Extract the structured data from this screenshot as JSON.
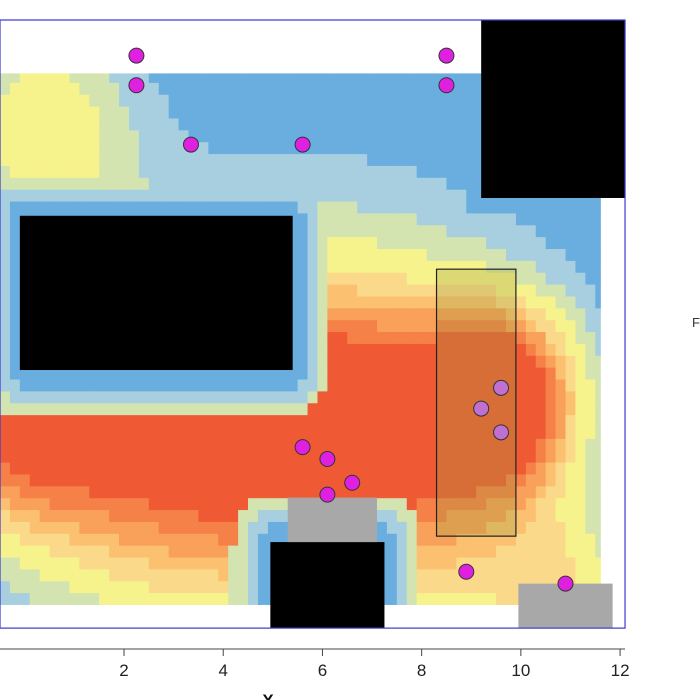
{
  "chart_data": {
    "type": "heatmap",
    "title": "",
    "xlabel": "X",
    "ylabel": "",
    "side_text": "F",
    "xlim": [
      -0.5,
      12.2
    ],
    "ylim": [
      0,
      10.4
    ],
    "x_ticks": [
      2,
      4,
      6,
      8,
      10,
      12
    ],
    "x_tick_labels": [
      "2",
      "4",
      "6",
      "8",
      "10",
      "12"
    ],
    "colors": {
      "frame": "#3a3ad0",
      "obstacle": "#000000",
      "gray_block": "#a8a8a8",
      "marker_fill": "#e020e0",
      "marker_outer_fill": "#c070d0",
      "highlight_fill": "#a0a040",
      "scale": [
        "#6aaee0",
        "#a8cfe0",
        "#d4e4b0",
        "#f7f38c",
        "#fbd98a",
        "#fbc070",
        "#f9a05a",
        "#f58048",
        "#ef5a35"
      ]
    },
    "heat_sources": [
      {
        "x": 9.6,
        "y": 4.0,
        "amp": 9.5,
        "sigma": 1.1
      },
      {
        "x": -0.3,
        "y": 3.6,
        "amp": 6.0,
        "sigma": 1.3
      },
      {
        "x": 6.1,
        "y": 3.1,
        "amp": 5.8,
        "sigma": 1.5
      },
      {
        "x": 4.0,
        "y": 3.4,
        "amp": 4.5,
        "sigma": 2.5
      },
      {
        "x": 2.2,
        "y": 3.4,
        "amp": 4.8,
        "sigma": 1.8
      },
      {
        "x": 7.5,
        "y": 4.2,
        "amp": 3.8,
        "sigma": 2.0
      },
      {
        "x": 11.0,
        "y": 0.9,
        "amp": 3.0,
        "sigma": 1.0
      },
      {
        "x": 0.4,
        "y": 8.6,
        "amp": 3.8,
        "sigma": 1.3
      },
      {
        "x": 9.0,
        "y": 1.0,
        "amp": 2.6,
        "sigma": 1.4
      }
    ],
    "heat_region": {
      "x0": -0.5,
      "x1": 11.6,
      "y0": 0.55,
      "y1": 9.5
    },
    "frame_box": {
      "x0": -0.5,
      "x1": 12.1,
      "y0": 0.15,
      "y1": 10.4
    },
    "obstacles": [
      {
        "name": "obstacle-top-right",
        "x0": 9.2,
        "x1": 12.1,
        "y0": 7.4,
        "y1": 10.4,
        "fill": "obstacle"
      },
      {
        "name": "obstacle-left-block",
        "x0": -0.1,
        "x1": 5.4,
        "y0": 4.5,
        "y1": 7.1,
        "fill": "obstacle"
      },
      {
        "name": "obstacle-bottom-center",
        "x0": 4.95,
        "x1": 7.25,
        "y0": 0.15,
        "y1": 1.6,
        "fill": "obstacle"
      },
      {
        "name": "gray-block-bottom-center",
        "x0": 5.3,
        "x1": 7.1,
        "y0": 1.6,
        "y1": 2.35,
        "fill": "gray_block"
      },
      {
        "name": "gray-block-bottom-right",
        "x0": 9.95,
        "x1": 11.85,
        "y0": 0.15,
        "y1": 0.9,
        "fill": "gray_block"
      }
    ],
    "highlight_box": {
      "x0": 8.3,
      "x1": 9.9,
      "y0": 1.7,
      "y1": 6.2
    },
    "points": [
      {
        "x": 2.25,
        "y": 9.8
      },
      {
        "x": 2.25,
        "y": 9.3
      },
      {
        "x": 8.5,
        "y": 9.8
      },
      {
        "x": 8.5,
        "y": 9.3
      },
      {
        "x": 3.35,
        "y": 8.3
      },
      {
        "x": 5.6,
        "y": 8.3
      },
      {
        "x": 5.6,
        "y": 3.2
      },
      {
        "x": 6.1,
        "y": 3.0
      },
      {
        "x": 6.6,
        "y": 2.6
      },
      {
        "x": 6.1,
        "y": 2.4
      },
      {
        "x": 8.9,
        "y": 1.1
      },
      {
        "x": 10.9,
        "y": 0.9
      },
      {
        "x": 9.6,
        "y": 4.2,
        "style": "outer"
      },
      {
        "x": 9.2,
        "y": 3.85,
        "style": "outer"
      },
      {
        "x": 9.6,
        "y": 3.45,
        "style": "outer"
      }
    ]
  }
}
